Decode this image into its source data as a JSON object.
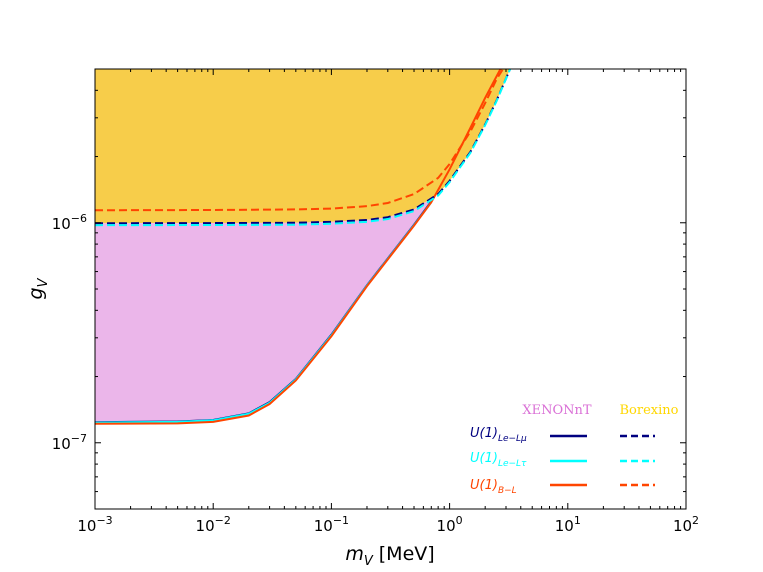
{
  "chart_data": {
    "type": "area",
    "xscale": "log",
    "yscale": "log",
    "xlim": [
      0.001,
      100
    ],
    "ylim": [
      5e-08,
      5e-06
    ],
    "xlabel_var": "m",
    "xlabel_sub": "V",
    "xlabel_unit": " [MeV]",
    "ylabel_var": "g",
    "ylabel_sub": "V",
    "x_ticks": [
      {
        "value": 0.001,
        "base": "10",
        "exp": "−3"
      },
      {
        "value": 0.01,
        "base": "10",
        "exp": "−2"
      },
      {
        "value": 0.1,
        "base": "10",
        "exp": "−1"
      },
      {
        "value": 1,
        "base": "10",
        "exp": "0"
      },
      {
        "value": 10,
        "base": "10",
        "exp": "1"
      },
      {
        "value": 100,
        "base": "10",
        "exp": "2"
      }
    ],
    "y_ticks": [
      {
        "value": 1e-07,
        "base": "10",
        "exp": "−7"
      },
      {
        "value": 1e-06,
        "base": "10",
        "exp": "−6"
      }
    ],
    "grid": false,
    "legend": {
      "placement": "lower-right",
      "col_headers": [
        "XENONnT",
        "Borexino"
      ],
      "header_colors": [
        "#da70d6",
        "#ffd700"
      ],
      "rows": [
        {
          "label": "U(1)",
          "sub": "Le−Lμ",
          "color": "#000080"
        },
        {
          "label": "U(1)",
          "sub": "Le−Lτ",
          "color": "#00ffff"
        },
        {
          "label": "U(1)",
          "sub": "B−L",
          "color": "#ff4500"
        }
      ]
    },
    "fill_colors": {
      "xenon": "#ebb6ea",
      "borexino": "#f7cd4a"
    },
    "series": [
      {
        "name": "XENONnT U(1)Le−Lμ",
        "style": "solid",
        "color": "#000080",
        "x": [
          0.001,
          0.005,
          0.01,
          0.02,
          0.03,
          0.05,
          0.1,
          0.2,
          0.5,
          0.7
        ],
        "y": [
          1.24e-07,
          1.25e-07,
          1.27e-07,
          1.36e-07,
          1.53e-07,
          1.95e-07,
          3.1e-07,
          5.2e-07,
          9.8e-07,
          1.25e-06
        ]
      },
      {
        "name": "XENONnT U(1)Le−Lτ",
        "style": "solid",
        "color": "#00ffff",
        "x": [
          0.001,
          0.005,
          0.01,
          0.02,
          0.03,
          0.05,
          0.1,
          0.2,
          0.5,
          0.7
        ],
        "y": [
          1.235e-07,
          1.245e-07,
          1.265e-07,
          1.355e-07,
          1.52e-07,
          1.94e-07,
          3.08e-07,
          5.18e-07,
          9.75e-07,
          1.24e-06
        ]
      },
      {
        "name": "XENONnT U(1)B−L",
        "style": "solid",
        "color": "#ff4500",
        "x": [
          0.001,
          0.005,
          0.01,
          0.02,
          0.03,
          0.05,
          0.1,
          0.2,
          0.5,
          0.7,
          1,
          1.5,
          2,
          2.8
        ],
        "y": [
          1.22e-07,
          1.225e-07,
          1.245e-07,
          1.33e-07,
          1.5e-07,
          1.92e-07,
          3.05e-07,
          5.15e-07,
          9.7e-07,
          1.24e-06,
          1.75e-06,
          2.7e-06,
          3.7e-06,
          5.2e-06
        ]
      },
      {
        "name": "Borexino U(1)Le−Lμ",
        "style": "dashed",
        "color": "#000080",
        "x": [
          0.001,
          0.01,
          0.05,
          0.1,
          0.2,
          0.3,
          0.5,
          0.8,
          1,
          1.5,
          2,
          2.5,
          3.3
        ],
        "y": [
          9.95e-07,
          9.97e-07,
          1e-06,
          1.01e-06,
          1.03e-06,
          1.06e-06,
          1.15e-06,
          1.35e-06,
          1.55e-06,
          2.1e-06,
          2.8e-06,
          3.6e-06,
          5.1e-06
        ]
      },
      {
        "name": "Borexino U(1)Le−Lτ",
        "style": "dashed",
        "color": "#00ffff",
        "x": [
          0.001,
          0.01,
          0.05,
          0.1,
          0.2,
          0.3,
          0.5,
          0.8,
          1,
          1.5,
          2,
          2.5,
          3.3
        ],
        "y": [
          9.75e-07,
          9.77e-07,
          9.8e-07,
          9.9e-07,
          1.01e-06,
          1.04e-06,
          1.13e-06,
          1.33e-06,
          1.53e-06,
          2.08e-06,
          2.78e-06,
          3.58e-06,
          5.1e-06
        ]
      },
      {
        "name": "Borexino U(1)B−L",
        "style": "dashed",
        "color": "#ff4500",
        "x": [
          0.001,
          0.01,
          0.05,
          0.1,
          0.2,
          0.3,
          0.5,
          0.8,
          1,
          1.5,
          2,
          2.5,
          2.9
        ],
        "y": [
          1.14e-06,
          1.143e-06,
          1.15e-06,
          1.16e-06,
          1.19e-06,
          1.23e-06,
          1.35e-06,
          1.6e-06,
          1.85e-06,
          2.6e-06,
          3.5e-06,
          4.5e-06,
          5.1e-06
        ]
      }
    ]
  }
}
